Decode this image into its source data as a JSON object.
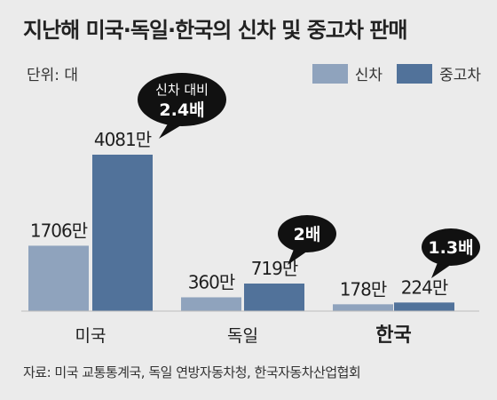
{
  "title": "지난해 미국·독일·한국의 신차 및 중고차 판매",
  "unit_label": "단위: 대",
  "colors": {
    "new": "#8fa3bd",
    "used": "#51729a",
    "callout": "#111111",
    "callout_text": "#ffffff",
    "background": "#ebebeb"
  },
  "source": "자료: 미국 교통통계국, 독일 연방자동차청, 한국자동차산업협회",
  "chart_data": {
    "type": "bar",
    "categories": [
      "미국",
      "독일",
      "한국"
    ],
    "category_bold": [
      false,
      false,
      true
    ],
    "series": [
      {
        "name": "신차",
        "values": [
          1706,
          360,
          178
        ],
        "labels": [
          "1706만",
          "360만",
          "178만"
        ]
      },
      {
        "name": "중고차",
        "values": [
          4081,
          719,
          224
        ],
        "labels": [
          "4081만",
          "719만",
          "224만"
        ]
      }
    ],
    "unit": "만 대",
    "ylim": [
      0,
      4300
    ],
    "annotations": [
      {
        "category": "미국",
        "lines": [
          "신차 대비",
          "2.4배"
        ]
      },
      {
        "category": "독일",
        "lines": [
          "2배"
        ]
      },
      {
        "category": "한국",
        "lines": [
          "1.3배"
        ]
      }
    ],
    "grid": false,
    "legend": "top-right"
  }
}
